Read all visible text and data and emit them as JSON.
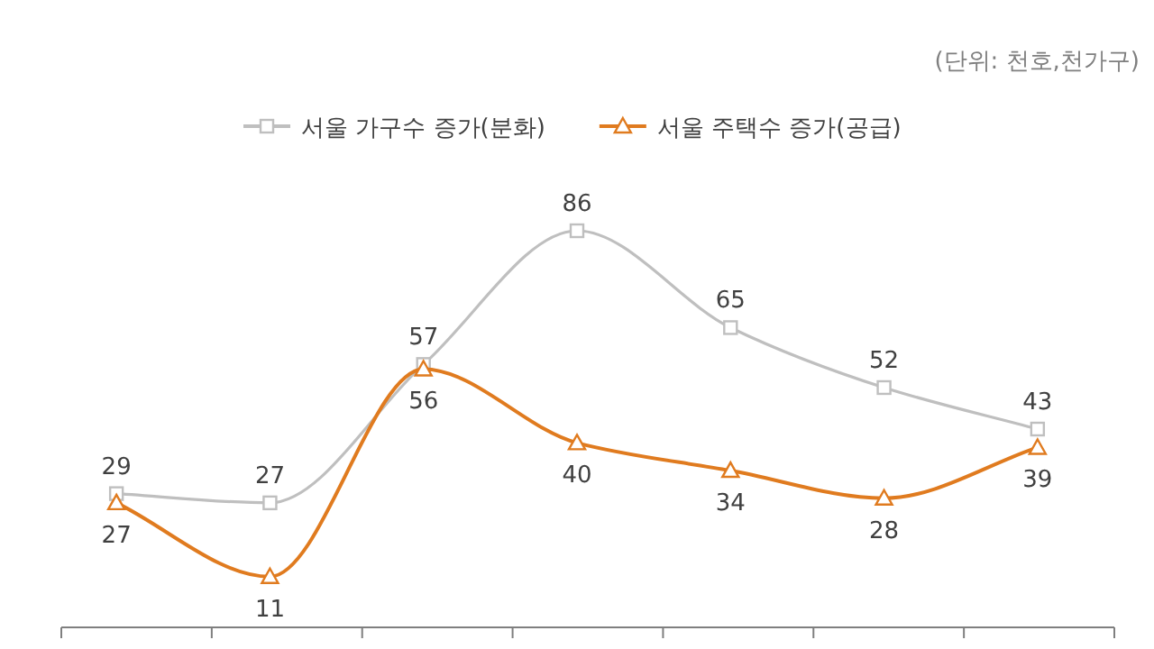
{
  "chart_data": {
    "type": "line",
    "relative": false,
    "data_labels": true,
    "legend": "top",
    "line_style": "solid",
    "categories": [
      null,
      null,
      null,
      null,
      null,
      null,
      null
    ],
    "series": [
      {
        "name": "서울 가구수 증가(분화)",
        "color": "#bfbfbf",
        "marker": "square",
        "values": [
          29,
          27,
          57,
          86,
          65,
          52,
          43
        ]
      },
      {
        "name": "서울 주택수 증가(공급)",
        "color": "#e07b1f",
        "marker": "triangle",
        "values": [
          27,
          11,
          56,
          40,
          34,
          28,
          39
        ]
      }
    ],
    "annotations": [
      "(단위: 천호,천가구)"
    ]
  }
}
